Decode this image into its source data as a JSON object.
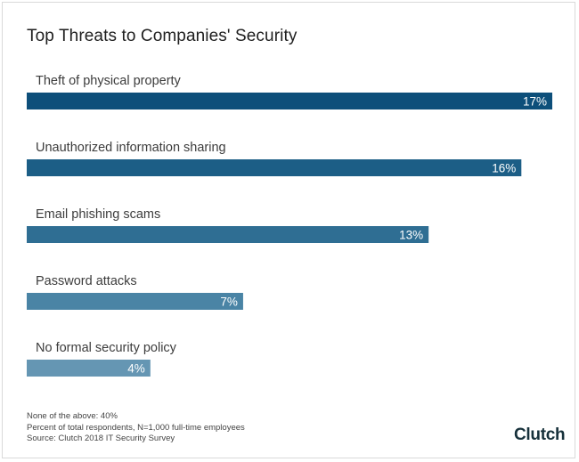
{
  "chart_data": {
    "type": "bar",
    "orientation": "horizontal",
    "title": "Top Threats to Companies' Security",
    "categories": [
      "Theft of physical property",
      "Unauthorized information sharing",
      "Email phishing scams",
      "Password attacks",
      "No formal security policy"
    ],
    "values": [
      17,
      16,
      13,
      7,
      4
    ],
    "value_labels": [
      "17%",
      "16%",
      "13%",
      "7%",
      "4%"
    ],
    "bar_colors": [
      "#0d4f7a",
      "#1c5e86",
      "#2f6e93",
      "#4a84a5",
      "#6596b3"
    ],
    "xlim": [
      0,
      17
    ],
    "grid": false,
    "legend": "none"
  },
  "notes": [
    "None of the above: 40%",
    "Percent of total respondents, N=1,000 full-time employees",
    "Source: Clutch 2018 IT Security Survey"
  ],
  "brand": {
    "logo_text": "Clutch"
  }
}
